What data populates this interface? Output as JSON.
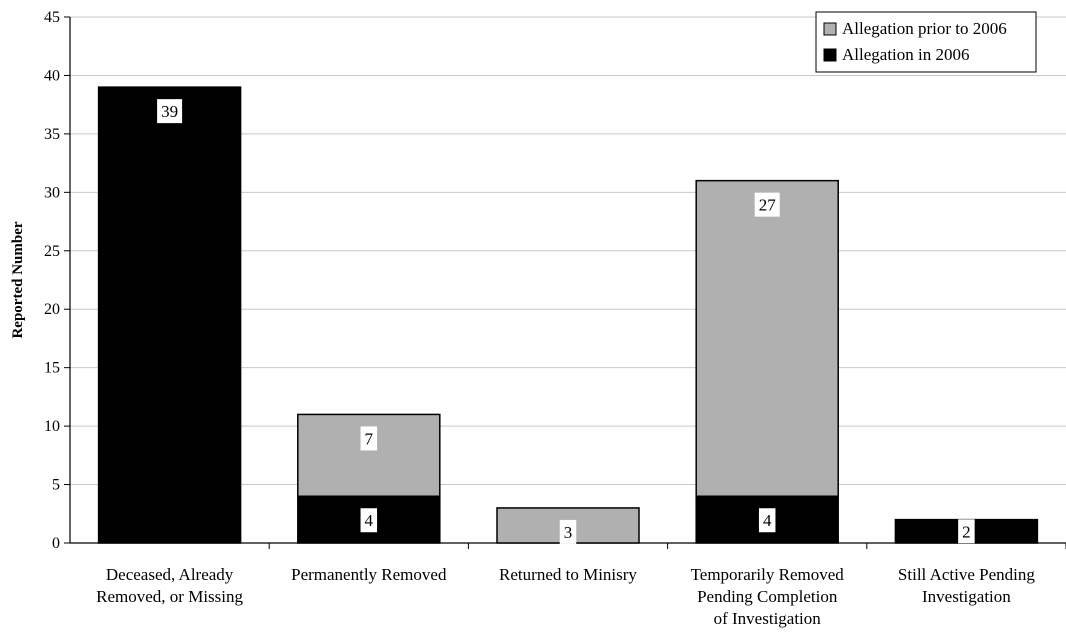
{
  "chart_data": {
    "type": "bar",
    "stacked": true,
    "categories": [
      [
        "Deceased, Already",
        "Removed, or Missing"
      ],
      [
        "Permanently Removed"
      ],
      [
        "Returned to Minisry"
      ],
      [
        "Temporarily Removed",
        "Pending Completion",
        "of Investigation"
      ],
      [
        "Still Active Pending",
        "Investigation"
      ]
    ],
    "series": [
      {
        "name": "Allegation in 2006",
        "values": [
          39,
          4,
          0,
          4,
          2
        ],
        "labels": [
          "39",
          "4",
          "",
          "4",
          "2"
        ],
        "color": "#000000"
      },
      {
        "name": "Allegation prior to 2006",
        "values": [
          0,
          7,
          3,
          27,
          0
        ],
        "labels": [
          "",
          "7",
          "3",
          "27",
          ""
        ],
        "color": "#b0b0b0"
      }
    ],
    "xlabel": "",
    "ylabel": "Reported Number",
    "ylim": [
      0,
      45
    ],
    "yticks": [
      "0",
      "5",
      "10",
      "15",
      "20",
      "25",
      "30",
      "35",
      "40",
      "45"
    ],
    "grid": true,
    "legend": {
      "position": "top-right",
      "order": [
        "Allegation prior to 2006",
        "Allegation in 2006"
      ]
    }
  }
}
